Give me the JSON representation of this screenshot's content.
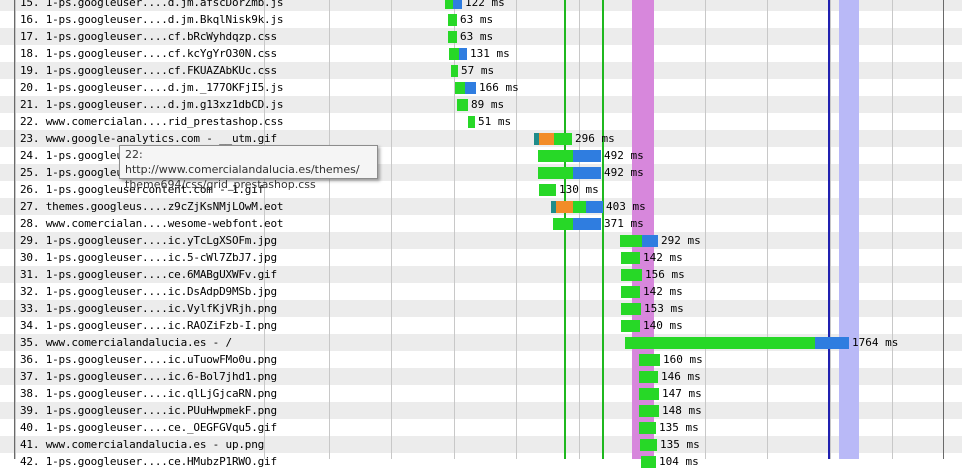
{
  "colors": {
    "dns": "#1f8c8a",
    "connect": "#f28c28",
    "ttfb": "#27d827",
    "download": "#2f7de0",
    "dom_content_loaded": "#d787dc",
    "on_load": "#b9b9f7",
    "start_render": "#1fb81f",
    "doc_complete": "#2020b0"
  },
  "tooltip": {
    "line1": "22: http://www.comercialandalucia.es/themes/",
    "line2": "theme694/css/grid_prestashop.css"
  },
  "requests": [
    {
      "label": "15. 1-ps.googleuser....d.jm.afscDorZmb.js",
      "time": "122 ms"
    },
    {
      "label": "16. 1-ps.googleuser....d.jm.BkqlNisk9k.js",
      "time": "63 ms"
    },
    {
      "label": "17. 1-ps.googleuser....cf.bRcWyhdqzp.css",
      "time": "63 ms"
    },
    {
      "label": "18. 1-ps.googleuser....cf.kcYgYrO30N.css",
      "time": "131 ms"
    },
    {
      "label": "19. 1-ps.googleuser....cf.FKUAZAbKUc.css",
      "time": "57 ms"
    },
    {
      "label": "20. 1-ps.googleuser....d.jm._177OKFjI5.js",
      "time": "166 ms"
    },
    {
      "label": "21. 1-ps.googleuser....d.jm.g13xz1dbCD.js",
      "time": "89 ms"
    },
    {
      "label": "22. www.comercialan....rid_prestashop.css",
      "time": "51 ms"
    },
    {
      "label": "23. www.google-analytics.com - __utm.gif",
      "time": "296 ms"
    },
    {
      "label": "24. 1-ps.googleus",
      "time": "492 ms"
    },
    {
      "label": "25. 1-ps.googleus",
      "time": "492 ms"
    },
    {
      "label": "26. 1-ps.googleusercontent.com - 1.gif",
      "time": "130 ms"
    },
    {
      "label": "27. themes.googleus....z9cZjKsNMjLOwM.eot",
      "time": "403 ms"
    },
    {
      "label": "28. www.comercialan....wesome-webfont.eot",
      "time": "371 ms"
    },
    {
      "label": "29. 1-ps.googleuser....ic.yTcLgXSOFm.jpg",
      "time": "292 ms"
    },
    {
      "label": "30. 1-ps.googleuser....ic.5-cWl7ZbJ7.jpg",
      "time": "142 ms"
    },
    {
      "label": "31. 1-ps.googleuser....ce.6MABgUXWFv.gif",
      "time": "156 ms"
    },
    {
      "label": "32. 1-ps.googleuser....ic.DsAdpD9MSb.jpg",
      "time": "142 ms"
    },
    {
      "label": "33. 1-ps.googleuser....ic.VylfKjVRjh.png",
      "time": "153 ms"
    },
    {
      "label": "34. 1-ps.googleuser....ic.RAOZiFzb-I.png",
      "time": "140 ms"
    },
    {
      "label": "35. www.comercialandalucia.es - /",
      "time": "1764 ms"
    },
    {
      "label": "36. 1-ps.googleuser....ic.uTuowFMo0u.png",
      "time": "160 ms"
    },
    {
      "label": "37. 1-ps.googleuser....ic.6-Bol7jhd1.png",
      "time": "146 ms"
    },
    {
      "label": "38. 1-ps.googleuser....ic.qlLjGjcaRN.png",
      "time": "147 ms"
    },
    {
      "label": "39. 1-ps.googleuser....ic.PUuHwpmekF.png",
      "time": "148 ms"
    },
    {
      "label": "40. 1-ps.googleuser....ce._OEGFGVqu5.gif",
      "time": "135 ms"
    },
    {
      "label": "41. www.comercialandalucia.es - up.png",
      "time": "135 ms"
    },
    {
      "label": "42. 1-ps.googleuser....ce.HMubzP1RWO.gif",
      "time": "104 ms"
    }
  ]
}
